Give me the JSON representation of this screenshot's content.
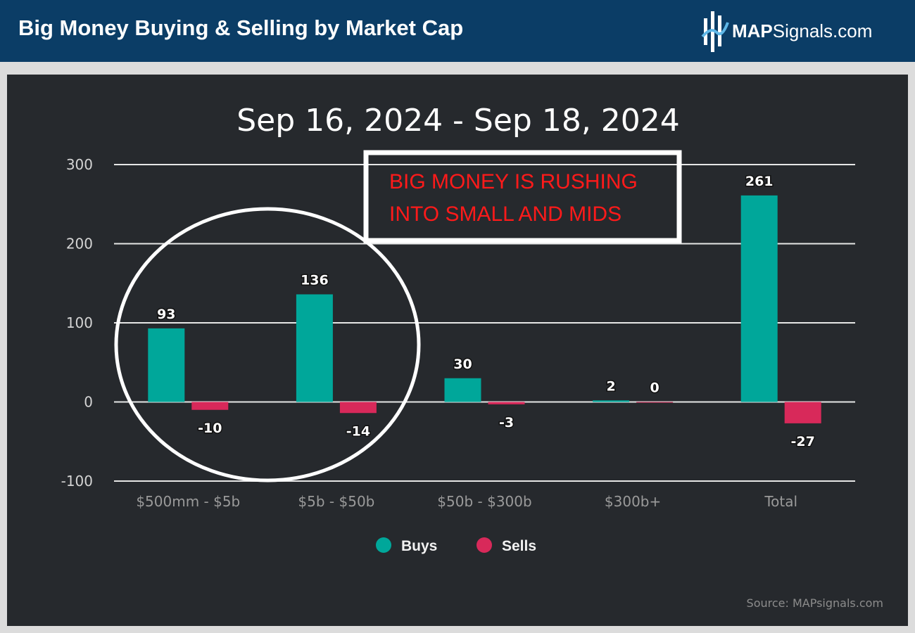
{
  "header": {
    "title": "Big Money Buying & Selling by Market Cap",
    "logo_bold": "MAP",
    "logo_rest": "Signals.com"
  },
  "colors": {
    "buys": "#00a79a",
    "sells": "#d8295a",
    "annotation": "#ff1a1a"
  },
  "annotation": {
    "line1": "BIG MONEY IS RUSHING",
    "line2": "INTO SMALL AND MIDS"
  },
  "source": "Source: MAPsignals.com",
  "chart_data": {
    "type": "bar",
    "title": "Sep 16, 2024 - Sep 18, 2024",
    "categories": [
      "$500mm - $5b",
      "$5b - $50b",
      "$50b - $300b",
      "$300b+",
      "Total"
    ],
    "series": [
      {
        "name": "Buys",
        "values": [
          93,
          136,
          30,
          2,
          261
        ]
      },
      {
        "name": "Sells",
        "values": [
          -10,
          -14,
          -3,
          0,
          -27
        ]
      }
    ],
    "ylim": [
      -100,
      300
    ],
    "yticks": [
      300,
      200,
      100,
      0,
      -100
    ],
    "xlabel": "",
    "ylabel": "",
    "grid": true,
    "legend": "bottom-center",
    "data_labels": true
  }
}
